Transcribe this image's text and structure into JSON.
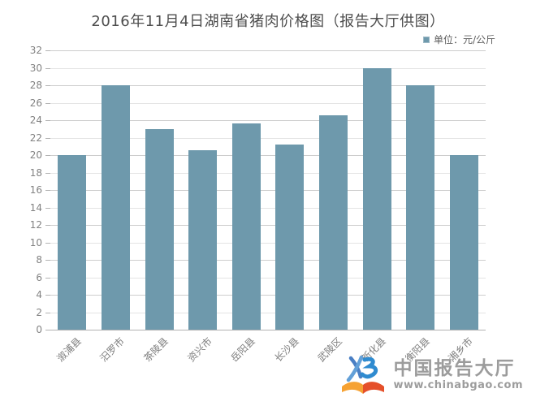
{
  "title": "2016年11月4日湖南省猪肉价格图（报告大厅供图）",
  "legend": {
    "label": "单位：元/公斤"
  },
  "colors": {
    "bar": "#6e99ac",
    "grid_major": "#cdcdcd",
    "grid_minor": "#e4e4e4",
    "axis": "#b3b3b3"
  },
  "chart_data": {
    "type": "bar",
    "title": "2016年11月4日湖南省猪肉价格图（报告大厅供图）",
    "categories": [
      "溆浦县",
      "汨罗市",
      "茶陵县",
      "资兴市",
      "岳阳县",
      "长沙县",
      "武陵区",
      "新化县",
      "衡阳县",
      "湘乡市"
    ],
    "values": [
      20,
      28,
      23,
      20.6,
      23.6,
      21.2,
      24.6,
      30,
      28,
      20
    ],
    "xlabel": "",
    "ylabel": "元/公斤",
    "ylim": [
      0,
      32
    ],
    "ytick_step": 2,
    "grid": true,
    "legend_entries": [
      "单位：元/公斤"
    ],
    "legend_position": "top-right",
    "bar_color": "#6e99ac"
  },
  "watermark": {
    "brand": "中国报告大厅",
    "url": "www.chinabgao.com"
  }
}
